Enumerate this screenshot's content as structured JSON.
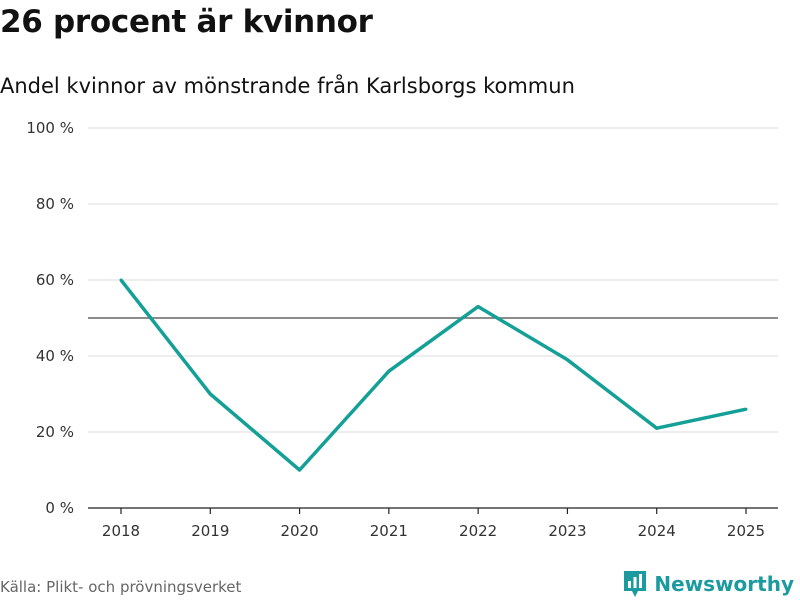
{
  "header": {
    "title": "26 procent är kvinnor",
    "subtitle": "Andel kvinnor av mönstrande från Karlsborgs kommun"
  },
  "footer": {
    "source": "Källa: Plikt- och prövningsverket",
    "brand": "Newsworthy"
  },
  "colors": {
    "line": "#14a096",
    "reference_line": "#666666",
    "grid": "#dddddd",
    "brand": "#1b9aa0"
  },
  "chart_data": {
    "type": "line",
    "title": "26 procent är kvinnor",
    "subtitle": "Andel kvinnor av mönstrande från Karlsborgs kommun",
    "x": [
      "2018",
      "2019",
      "2020",
      "2021",
      "2022",
      "2023",
      "2024",
      "2025"
    ],
    "series": [
      {
        "name": "Andel kvinnor",
        "values": [
          60,
          30,
          10,
          36,
          53,
          39,
          21,
          26
        ]
      }
    ],
    "reference_line": 50,
    "ylim": [
      0,
      100
    ],
    "yticks": [
      0,
      20,
      40,
      60,
      80,
      100
    ],
    "ytick_labels": [
      "0 %",
      "20 %",
      "40 %",
      "60 %",
      "80 %",
      "100 %"
    ],
    "xlabel": "",
    "ylabel": "",
    "grid": true,
    "legend": "none"
  }
}
